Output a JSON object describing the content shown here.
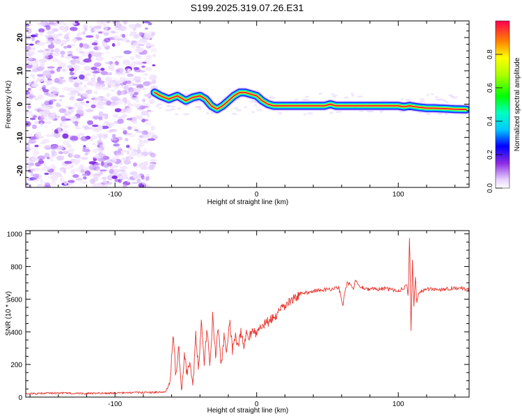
{
  "title": "S199.2025.319.07.26.E31",
  "chart_data": [
    {
      "type": "heatmap",
      "xlabel": "Height of straight line (km)",
      "ylabel": "Frequency (Hz)",
      "xlim": [
        -163,
        150
      ],
      "ylim": [
        -25,
        25
      ],
      "xticks": [
        -100,
        0,
        100
      ],
      "yticks": [
        -20,
        -10,
        0,
        10,
        20
      ],
      "noise_region_x": [
        -163,
        -72
      ],
      "ridge": {
        "name": "dominant frequency ridge",
        "x": [
          -72,
          -68,
          -62,
          -56,
          -50,
          -45,
          -40,
          -36,
          -32,
          -28,
          -24,
          -20,
          -16,
          -12,
          -8,
          -4,
          0,
          4,
          8,
          12,
          16,
          20,
          30,
          40,
          48,
          52,
          56,
          60,
          70,
          80,
          90,
          100,
          104,
          108,
          112,
          116,
          120,
          125,
          130,
          140,
          148
        ],
        "freq": [
          3.5,
          2.5,
          1.5,
          2.5,
          1.0,
          2.0,
          2.5,
          1.5,
          -0.5,
          -1.5,
          -0.5,
          1.0,
          2.5,
          3.5,
          3.5,
          3.0,
          2.5,
          1.0,
          0.0,
          -0.5,
          -0.5,
          -0.5,
          -0.5,
          -0.5,
          -0.5,
          0.0,
          -0.5,
          -0.5,
          -0.5,
          -0.5,
          -0.5,
          -0.5,
          -0.8,
          -0.5,
          -0.8,
          -1.0,
          -1.2,
          -1.2,
          -1.3,
          -1.5,
          -1.6
        ]
      },
      "colorbar": {
        "label": "Normalized spectral amplitude",
        "range": [
          0,
          1
        ],
        "ticks": [
          "0.0",
          "0.2",
          "0.4",
          "0.6",
          "0.8"
        ]
      }
    },
    {
      "type": "line",
      "xlabel": "Height of straight line (km)",
      "ylabel": "SNR (10 * v/v)",
      "xlim": [
        -163,
        150
      ],
      "ylim": [
        0,
        1020
      ],
      "xticks": [
        -100,
        0,
        100
      ],
      "yticks": [
        0,
        200,
        400,
        600,
        800,
        1000
      ],
      "series": [
        {
          "name": "SNR",
          "color": "#e8342c",
          "x": [
            -163,
            -140,
            -120,
            -100,
            -80,
            -65,
            -61,
            -59,
            -57,
            -55,
            -53,
            -51,
            -49,
            -47,
            -45,
            -43,
            -41,
            -39,
            -37,
            -35,
            -33,
            -31,
            -29,
            -27,
            -25,
            -23,
            -21,
            -19,
            -17,
            -15,
            -13,
            -11,
            -9,
            -7,
            -5,
            -3,
            -1,
            2,
            6,
            10,
            14,
            18,
            22,
            26,
            30,
            40,
            50,
            58,
            60,
            61,
            62,
            64,
            66,
            68,
            70,
            72,
            80,
            90,
            100,
            104,
            106,
            107,
            108,
            109,
            110,
            111,
            112,
            113,
            114,
            116,
            120,
            130,
            140,
            150
          ],
          "y": [
            20,
            25,
            22,
            25,
            28,
            30,
            80,
            400,
            120,
            300,
            60,
            250,
            140,
            200,
            55,
            380,
            170,
            470,
            220,
            430,
            170,
            500,
            250,
            430,
            180,
            370,
            270,
            470,
            280,
            390,
            300,
            400,
            310,
            410,
            360,
            430,
            380,
            420,
            450,
            470,
            500,
            540,
            575,
            600,
            630,
            650,
            660,
            670,
            600,
            560,
            640,
            700,
            690,
            660,
            720,
            680,
            660,
            665,
            650,
            670,
            700,
            600,
            1010,
            380,
            850,
            540,
            750,
            580,
            620,
            650,
            660,
            660,
            670,
            660
          ]
        }
      ]
    }
  ]
}
